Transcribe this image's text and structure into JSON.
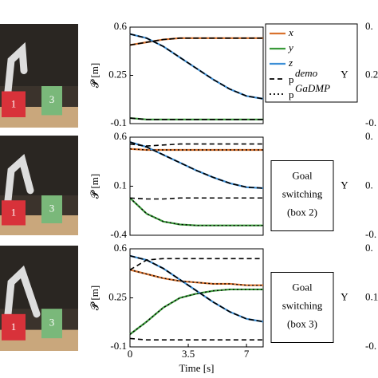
{
  "chart_data": [
    {
      "type": "line",
      "ylabel": "𝓟 [m]",
      "x": [
        0,
        1,
        2,
        3,
        4,
        5,
        6,
        7,
        8
      ],
      "xlim": [
        0,
        8
      ],
      "ylim": [
        -0.1,
        0.6
      ],
      "yticks": [
        -0.1,
        0.25,
        0.6
      ],
      "series": [
        {
          "name": "x",
          "color": "#d9722e",
          "values": [
            0.47,
            0.49,
            0.51,
            0.52,
            0.52,
            0.52,
            0.52,
            0.52,
            0.52
          ]
        },
        {
          "name": "y",
          "color": "#3a9a3a",
          "values": [
            -0.06,
            -0.07,
            -0.07,
            -0.07,
            -0.07,
            -0.07,
            -0.07,
            -0.07,
            -0.07
          ]
        },
        {
          "name": "z",
          "color": "#3d8fd6",
          "values": [
            0.55,
            0.52,
            0.46,
            0.38,
            0.3,
            0.22,
            0.15,
            0.1,
            0.08
          ]
        }
      ],
      "demo": {
        "values": [
          [
            0.47,
            0.49,
            0.51,
            0.52,
            0.52,
            0.52,
            0.52,
            0.52,
            0.52
          ],
          [
            -0.06,
            -0.07,
            -0.07,
            -0.07,
            -0.07,
            -0.07,
            -0.07,
            -0.07,
            -0.07
          ],
          [
            0.55,
            0.52,
            0.46,
            0.38,
            0.3,
            0.22,
            0.15,
            0.1,
            0.08
          ]
        ]
      },
      "legend": [
        {
          "label": "p",
          "sup": "demo",
          "dash": "6,4"
        },
        {
          "label": "p",
          "sup": "GaDMP",
          "dash": "2,3"
        }
      ],
      "cut_axis": {
        "label": "Υ",
        "ticks": [
          "0.",
          "0.2",
          "-0."
        ]
      }
    },
    {
      "type": "line",
      "ylabel": "𝓟 [m]",
      "x": [
        0,
        1,
        2,
        3,
        4,
        5,
        6,
        7,
        8
      ],
      "xlim": [
        0,
        8
      ],
      "ylim": [
        -0.4,
        0.6
      ],
      "yticks": [
        -0.4,
        0.1,
        0.6
      ],
      "series": [
        {
          "name": "x",
          "color": "#d9722e",
          "values": [
            0.48,
            0.47,
            0.47,
            0.47,
            0.47,
            0.47,
            0.47,
            0.47,
            0.47
          ]
        },
        {
          "name": "y",
          "color": "#3a9a3a",
          "values": [
            -0.02,
            -0.18,
            -0.26,
            -0.29,
            -0.3,
            -0.3,
            -0.3,
            -0.3,
            -0.3
          ]
        },
        {
          "name": "z",
          "color": "#3d8fd6",
          "values": [
            0.55,
            0.5,
            0.42,
            0.34,
            0.26,
            0.19,
            0.13,
            0.09,
            0.08
          ]
        }
      ],
      "demo": {
        "values": [
          [
            0.53,
            0.51,
            0.52,
            0.53,
            0.53,
            0.53,
            0.53,
            0.53,
            0.53
          ],
          [
            -0.02,
            -0.03,
            -0.03,
            -0.02,
            -0.02,
            -0.02,
            -0.02,
            -0.02,
            -0.02
          ],
          [
            0.55,
            0.5,
            0.42,
            0.34,
            0.26,
            0.19,
            0.13,
            0.09,
            0.08
          ]
        ]
      },
      "annotation": [
        "Goal",
        "switching",
        "(box 2)"
      ],
      "cut_axis": {
        "label": "Υ",
        "ticks": [
          "0.",
          "0.",
          "-0."
        ]
      }
    },
    {
      "type": "line",
      "ylabel": "𝓟 [m]",
      "xlabel": "Time [s]",
      "x": [
        0,
        1,
        2,
        3,
        4,
        5,
        6,
        7,
        8
      ],
      "xlim": [
        0,
        8
      ],
      "ylim": [
        -0.1,
        0.6
      ],
      "xticks": [
        0,
        3.5,
        7
      ],
      "yticks": [
        -0.1,
        0.25,
        0.6
      ],
      "series": [
        {
          "name": "x",
          "color": "#d9722e",
          "values": [
            0.45,
            0.42,
            0.39,
            0.37,
            0.36,
            0.35,
            0.35,
            0.34,
            0.34
          ]
        },
        {
          "name": "y",
          "color": "#3a9a3a",
          "values": [
            -0.01,
            0.08,
            0.18,
            0.25,
            0.28,
            0.3,
            0.31,
            0.31,
            0.31
          ]
        },
        {
          "name": "z",
          "color": "#3d8fd6",
          "values": [
            0.55,
            0.52,
            0.46,
            0.38,
            0.3,
            0.22,
            0.15,
            0.1,
            0.08
          ]
        }
      ],
      "demo": {
        "values": [
          [
            0.45,
            0.52,
            0.53,
            0.53,
            0.53,
            0.53,
            0.53,
            0.53,
            0.53
          ],
          [
            -0.04,
            -0.05,
            -0.05,
            -0.05,
            -0.05,
            -0.05,
            -0.05,
            -0.05,
            -0.05
          ],
          [
            0.55,
            0.52,
            0.46,
            0.38,
            0.3,
            0.22,
            0.15,
            0.1,
            0.08
          ]
        ]
      },
      "annotation": [
        "Goal",
        "switching",
        "(box 3)"
      ],
      "cut_axis": {
        "label": "Υ",
        "ticks": [
          "0.",
          "0.1",
          "-0."
        ]
      }
    }
  ],
  "photos": [
    [
      "1",
      "3"
    ],
    [
      "1",
      "3"
    ],
    [
      "1",
      "3"
    ]
  ]
}
